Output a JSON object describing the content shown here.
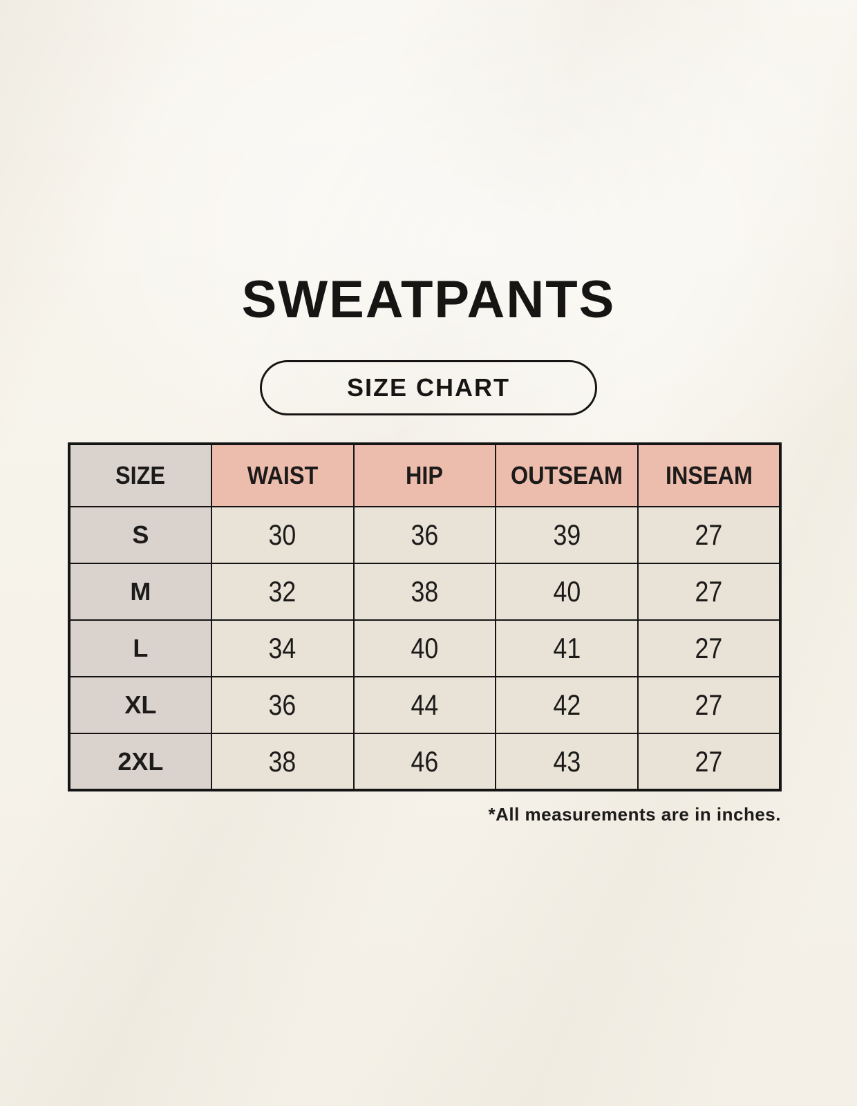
{
  "title": "SWEATPANTS",
  "badge_label": "SIZE CHART",
  "footnote": "*All measurements are in inches.",
  "table": {
    "columns": [
      "SIZE",
      "WAIST",
      "HIP",
      "OUTSEAM",
      "INSEAM"
    ],
    "rows": [
      {
        "size": "S",
        "values": [
          "30",
          "36",
          "39",
          "27"
        ]
      },
      {
        "size": "M",
        "values": [
          "32",
          "38",
          "40",
          "27"
        ]
      },
      {
        "size": "L",
        "values": [
          "34",
          "40",
          "41",
          "27"
        ]
      },
      {
        "size": "XL",
        "values": [
          "36",
          "44",
          "42",
          "27"
        ]
      },
      {
        "size": "2XL",
        "values": [
          "38",
          "46",
          "43",
          "27"
        ]
      }
    ]
  },
  "colors": {
    "background": "#f7f4ec",
    "header_pink": "#ecbcad",
    "size_gray": "#d9d2cd",
    "cell_cream": "#e9e2d7",
    "border_black": "#141414",
    "text_black": "#1c1b1a"
  }
}
